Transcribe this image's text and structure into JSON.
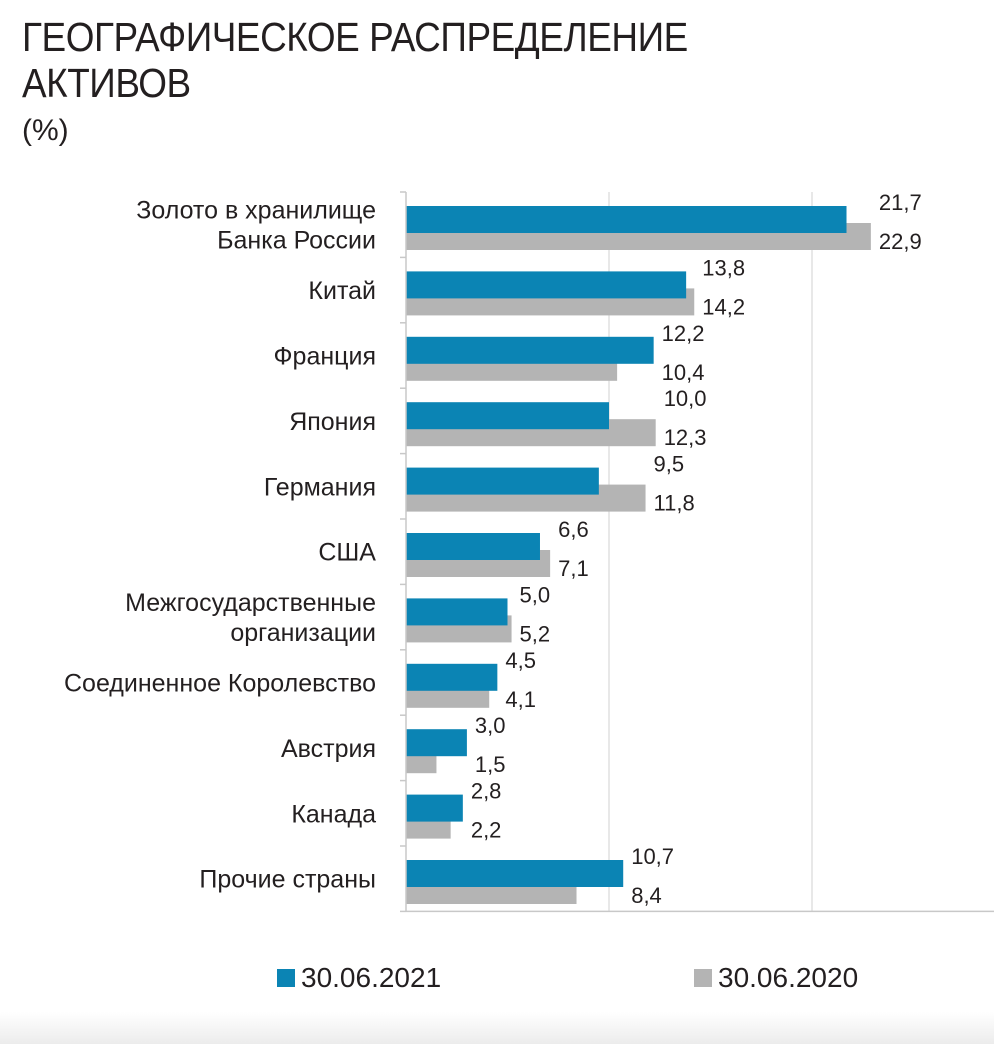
{
  "page": {
    "title": "ГЕОГРАФИЧЕСКОЕ РАСПРЕДЕЛЕНИЕ АКТИВОВ",
    "unit": "(%)"
  },
  "chart_data": {
    "type": "bar",
    "orientation": "horizontal",
    "title": "ГЕОГРАФИЧЕСКОЕ РАСПРЕДЕЛЕНИЕ АКТИВОВ",
    "subtitle": "(%)",
    "categories": [
      [
        "Золото в хранилище",
        "Банка России"
      ],
      [
        "Китай"
      ],
      [
        "Франция"
      ],
      [
        "Япония"
      ],
      [
        "Германия"
      ],
      [
        "США"
      ],
      [
        "Межгосударственные",
        "организации"
      ],
      [
        "Соединенное Королевство"
      ],
      [
        "Австрия"
      ],
      [
        "Канада"
      ],
      [
        "Прочие страны"
      ]
    ],
    "series": [
      {
        "name": "30.06.2021",
        "color": "#0b84b4",
        "values": [
          21.7,
          13.8,
          12.2,
          10.0,
          9.5,
          6.6,
          5.0,
          4.5,
          3.0,
          2.8,
          10.7
        ],
        "labels": [
          "21,7",
          "13,8",
          "12,2",
          "10,0",
          "9,5",
          "6,6",
          "5,0",
          "4,5",
          "3,0",
          "2,8",
          "10,7"
        ]
      },
      {
        "name": "30.06.2020",
        "color": "#b4b4b4",
        "values": [
          22.9,
          14.2,
          10.4,
          12.3,
          11.8,
          7.1,
          5.2,
          4.1,
          1.5,
          2.2,
          8.4
        ],
        "labels": [
          "22,9",
          "14,2",
          "10,4",
          "12,3",
          "11,8",
          "7,1",
          "5,2",
          "4,1",
          "1,5",
          "2,2",
          "8,4"
        ]
      }
    ],
    "xlim": [
      0,
      30
    ],
    "grid": true,
    "legend_position": "bottom"
  }
}
